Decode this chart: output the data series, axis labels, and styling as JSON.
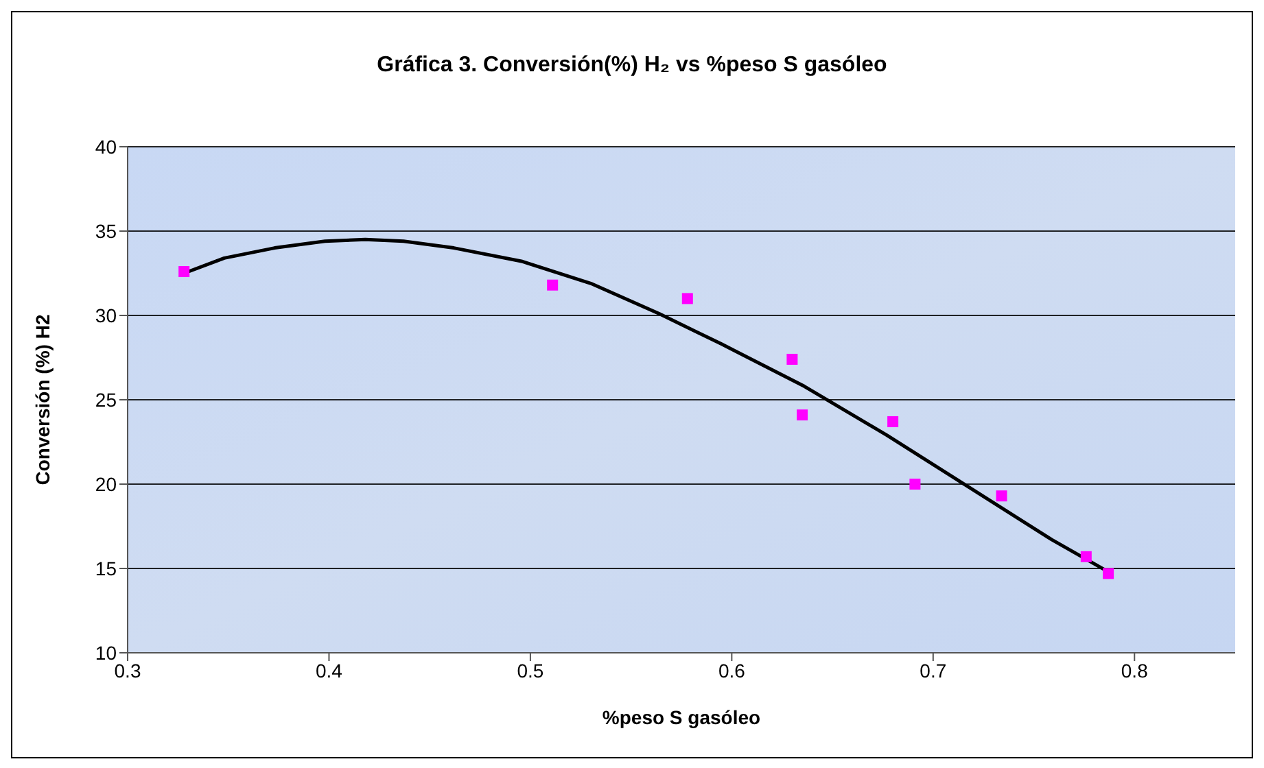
{
  "chart_data": {
    "type": "scatter",
    "title": "Gráfica 3. Conversión(%) H₂ vs %peso S gasóleo",
    "xlabel": "%peso S gasóleo",
    "ylabel": "Conversión (%) H2",
    "xlim": [
      0.3,
      0.85
    ],
    "xticks": [
      0.3,
      0.4,
      0.5,
      0.6,
      0.7,
      0.8
    ],
    "ylim": [
      10,
      40
    ],
    "yticks": [
      10,
      15,
      20,
      25,
      30,
      35,
      40
    ],
    "grid": "y",
    "series": [
      {
        "color": "#ff00ff",
        "marker": "square",
        "x": [
          0.328,
          0.511,
          0.578,
          0.63,
          0.635,
          0.68,
          0.691,
          0.734,
          0.776,
          0.787
        ],
        "values": [
          32.6,
          31.8,
          31.0,
          27.4,
          24.1,
          23.7,
          20.0,
          19.3,
          15.7,
          14.7
        ]
      },
      {
        "type": "line",
        "color": "#000000",
        "marker": "none",
        "line_style": "solid",
        "x": [
          0.328,
          0.348,
          0.373,
          0.398,
          0.418,
          0.437,
          0.462,
          0.496,
          0.53,
          0.564,
          0.595,
          0.636,
          0.677,
          0.718,
          0.759,
          0.787
        ],
        "values": [
          32.5,
          33.4,
          34.0,
          34.4,
          34.5,
          34.4,
          34.0,
          33.2,
          31.9,
          30.1,
          28.3,
          25.8,
          22.9,
          19.8,
          16.7,
          14.8
        ]
      }
    ]
  }
}
